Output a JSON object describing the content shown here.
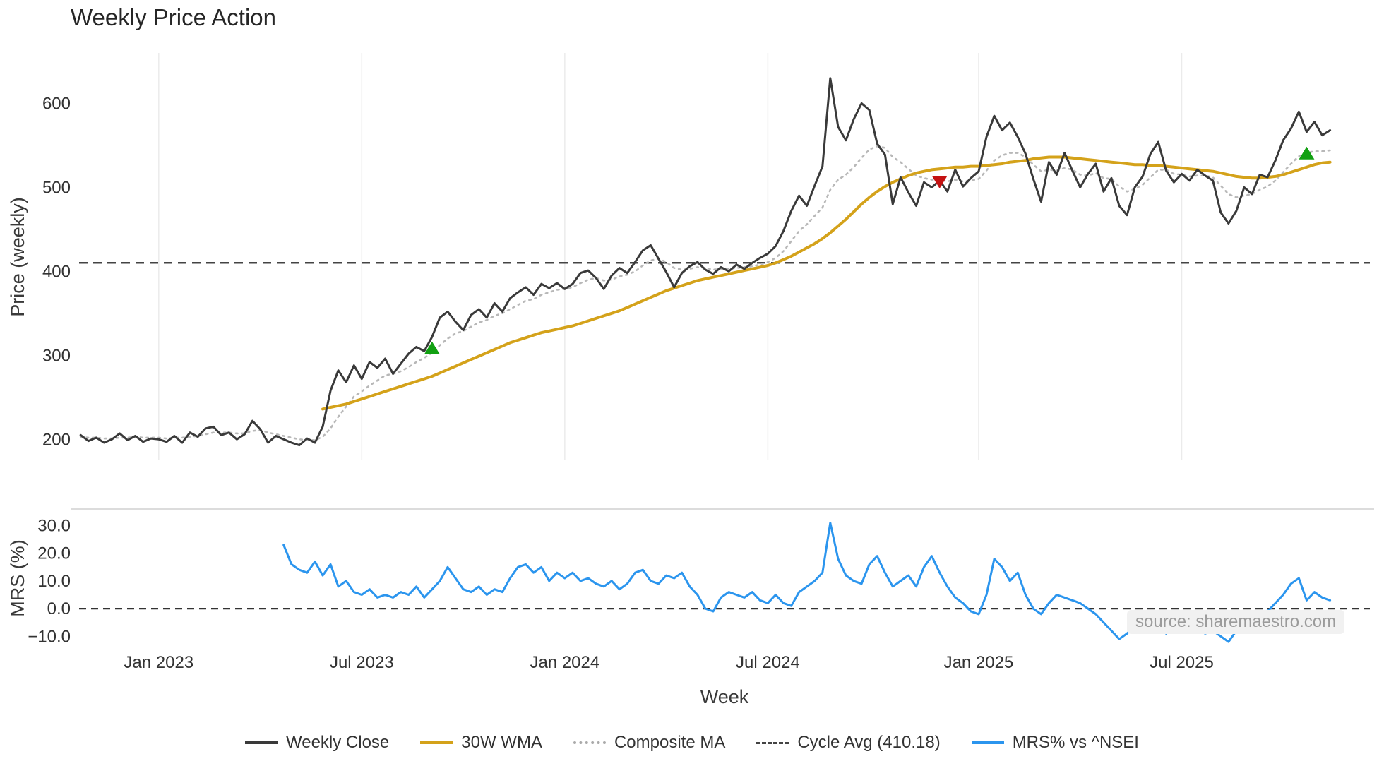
{
  "title": "Weekly Price Action",
  "watermark": "source: sharemaestro.com",
  "legend": [
    {
      "label": "Weekly Close",
      "line": "solid",
      "color": "#3a3a3a"
    },
    {
      "label": "30W WMA",
      "line": "solid",
      "color": "#d4a21a"
    },
    {
      "label": "Composite MA",
      "line": "dotted",
      "color": "#aaaaaa"
    },
    {
      "label": "Cycle Avg (410.18)",
      "line": "dashed",
      "color": "#444444"
    },
    {
      "label": "MRS% vs ^NSEI",
      "line": "solid",
      "color": "#2b95ee"
    }
  ],
  "chart_data": {
    "type": "line",
    "x_unit": "week_index",
    "xlabel": "Week",
    "xlim": [
      -0.2,
      165.1
    ],
    "grid_color": "#ebebeb",
    "xticks": [
      {
        "week": 10,
        "label": "Jan 2023"
      },
      {
        "week": 36,
        "label": "Jul 2023"
      },
      {
        "week": 62,
        "label": "Jan 2024"
      },
      {
        "week": 88,
        "label": "Jul 2024"
      },
      {
        "week": 115,
        "label": "Jan 2025"
      },
      {
        "week": 141,
        "label": "Jul 2025"
      }
    ],
    "panels": [
      {
        "name": "price",
        "ylabel": "Price (weekly)",
        "ylim": [
          175,
          660
        ],
        "yticks": [
          {
            "v": 600,
            "label": "600"
          },
          {
            "v": 500,
            "label": "500"
          },
          {
            "v": 400,
            "label": "400"
          },
          {
            "v": 300,
            "label": "300"
          },
          {
            "v": 200,
            "label": "200"
          }
        ]
      },
      {
        "name": "mrs",
        "ylabel": "MRS (%)",
        "ylim": [
          -13.5,
          35.5
        ],
        "yticks": [
          {
            "v": 30,
            "label": "30.0"
          },
          {
            "v": 20,
            "label": "20.0"
          },
          {
            "v": 10,
            "label": "10.0"
          },
          {
            "v": 0,
            "label": "0.0"
          },
          {
            "v": -10,
            "label": "−10.0"
          }
        ]
      }
    ],
    "cycle_avg": {
      "value": 410.18,
      "label": "Cycle Avg (410.18)"
    },
    "series": [
      {
        "name": "Weekly Close",
        "panel": "price",
        "color": "#3a3a3a",
        "style": "solid",
        "start_week": 0,
        "values": [
          205,
          198,
          202,
          196,
          200,
          207,
          199,
          204,
          197,
          201,
          200,
          197,
          204,
          196,
          208,
          203,
          213,
          215,
          205,
          208,
          200,
          206,
          222,
          212,
          196,
          204,
          200,
          196,
          193,
          201,
          196,
          215,
          258,
          282,
          268,
          288,
          272,
          292,
          285,
          296,
          278,
          290,
          302,
          310,
          305,
          322,
          345,
          352,
          340,
          330,
          348,
          355,
          345,
          362,
          352,
          368,
          375,
          381,
          372,
          385,
          380,
          386,
          379,
          385,
          398,
          401,
          392,
          379,
          395,
          404,
          398,
          411,
          425,
          431,
          415,
          399,
          381,
          398,
          406,
          411,
          402,
          397,
          405,
          400,
          408,
          403,
          410,
          416,
          421,
          430,
          448,
          472,
          490,
          478,
          502,
          525,
          630,
          572,
          556,
          581,
          600,
          592,
          552,
          539,
          480,
          512,
          494,
          478,
          506,
          500,
          508,
          495,
          521,
          501,
          511,
          519,
          560,
          585,
          568,
          577,
          560,
          540,
          510,
          483,
          530,
          515,
          541,
          520,
          500,
          516,
          528,
          495,
          511,
          478,
          467,
          500,
          513,
          540,
          554,
          520,
          506,
          516,
          508,
          521,
          514,
          508,
          470,
          457,
          472,
          500,
          492,
          515,
          512,
          532,
          556,
          570,
          590,
          566,
          578,
          562,
          568
        ]
      },
      {
        "name": "30W WMA",
        "panel": "price",
        "color": "#d4a21a",
        "style": "solid",
        "start_week": 31,
        "values": [
          236,
          238,
          240,
          242,
          245,
          248,
          251,
          254,
          257,
          260,
          263,
          266,
          269,
          272,
          275,
          279,
          283,
          287,
          291,
          295,
          299,
          303,
          307,
          311,
          315,
          318,
          321,
          324,
          327,
          329,
          331,
          333,
          335,
          338,
          341,
          344,
          347,
          350,
          353,
          357,
          361,
          365,
          369,
          373,
          377,
          380,
          383,
          386,
          389,
          391,
          393,
          395,
          397,
          399,
          401,
          403,
          405,
          407,
          410,
          414,
          418,
          423,
          428,
          433,
          439,
          446,
          454,
          462,
          471,
          480,
          488,
          495,
          501,
          506,
          510,
          514,
          517,
          519,
          521,
          522,
          523,
          524,
          524,
          525,
          525,
          526,
          527,
          528,
          530,
          531,
          532,
          534,
          535,
          536,
          536,
          536,
          535,
          534,
          533,
          532,
          531,
          530,
          529,
          528,
          527,
          527,
          526,
          526,
          525,
          524,
          523,
          522,
          521,
          520,
          519,
          517,
          515,
          513,
          512,
          511,
          511,
          512,
          513,
          515,
          518,
          521,
          524,
          527,
          529,
          530
        ]
      },
      {
        "name": "Composite MA",
        "panel": "price",
        "color": "#b8b8b8",
        "style": "dotted",
        "start_week": 0,
        "values": [
          203,
          202,
          202,
          201,
          201,
          202,
          202,
          203,
          202,
          202,
          202,
          201,
          202,
          202,
          203,
          204,
          206,
          208,
          208,
          208,
          207,
          207,
          210,
          211,
          208,
          206,
          204,
          202,
          200,
          199,
          199,
          203,
          213,
          227,
          239,
          251,
          257,
          264,
          270,
          276,
          278,
          281,
          286,
          292,
          297,
          303,
          312,
          320,
          326,
          329,
          334,
          339,
          342,
          347,
          350,
          355,
          360,
          365,
          367,
          372,
          375,
          378,
          379,
          381,
          386,
          390,
          392,
          389,
          390,
          394,
          396,
          400,
          407,
          413,
          415,
          411,
          404,
          402,
          403,
          405,
          404,
          402,
          403,
          403,
          404,
          405,
          406,
          408,
          411,
          416,
          424,
          436,
          448,
          456,
          466,
          476,
          497,
          509,
          515,
          524,
          535,
          545,
          549,
          547,
          536,
          530,
          522,
          514,
          511,
          509,
          509,
          507,
          509,
          507,
          508,
          510,
          520,
          532,
          538,
          541,
          541,
          536,
          527,
          519,
          521,
          520,
          523,
          521,
          515,
          514,
          517,
          511,
          510,
          501,
          495,
          498,
          503,
          512,
          521,
          521,
          516,
          515,
          513,
          514,
          514,
          512,
          502,
          492,
          488,
          490,
          492,
          497,
          501,
          508,
          518,
          528,
          537,
          541,
          543,
          543,
          544
        ]
      },
      {
        "name": "MRS% vs ^NSEI",
        "panel": "mrs",
        "color": "#2b95ee",
        "style": "solid",
        "start_week": 26,
        "values": [
          23,
          16,
          14,
          13,
          17,
          12,
          16,
          8,
          10,
          6,
          5,
          7,
          4,
          5,
          4,
          6,
          5,
          8,
          4,
          7,
          10,
          15,
          11,
          7,
          6,
          8,
          5,
          7,
          6,
          11,
          15,
          16,
          13,
          15,
          10,
          13,
          11,
          13,
          10,
          11,
          9,
          8,
          10,
          7,
          9,
          13,
          14,
          10,
          9,
          12,
          11,
          13,
          8,
          5,
          0,
          -1,
          4,
          6,
          5,
          4,
          6,
          3,
          2,
          5,
          2,
          1,
          6,
          8,
          10,
          13,
          31,
          18,
          12,
          10,
          9,
          16,
          19,
          13,
          8,
          10,
          12,
          8,
          15,
          19,
          13,
          8,
          4,
          2,
          -1,
          -2,
          5,
          18,
          15,
          10,
          13,
          5,
          0,
          -2,
          2,
          5,
          4,
          3,
          2,
          0,
          -2,
          -5,
          -8,
          -11,
          -9,
          -6,
          -4,
          -8,
          -5,
          -9,
          -7,
          -6,
          -8,
          -7,
          -9,
          -8,
          -10,
          -12,
          -8,
          -6,
          -4,
          -3,
          -1,
          2,
          5,
          9,
          11,
          3,
          6,
          4,
          3
        ]
      }
    ],
    "markers": [
      {
        "signal": "buy",
        "shape": "triangle-up",
        "week": 45,
        "price": 308,
        "color": "#12a012"
      },
      {
        "signal": "sell",
        "shape": "triangle-down",
        "week": 110,
        "price": 507,
        "color": "#c41212"
      },
      {
        "signal": "buy",
        "shape": "triangle-up",
        "week": 157,
        "price": 540,
        "color": "#12a012"
      }
    ]
  }
}
